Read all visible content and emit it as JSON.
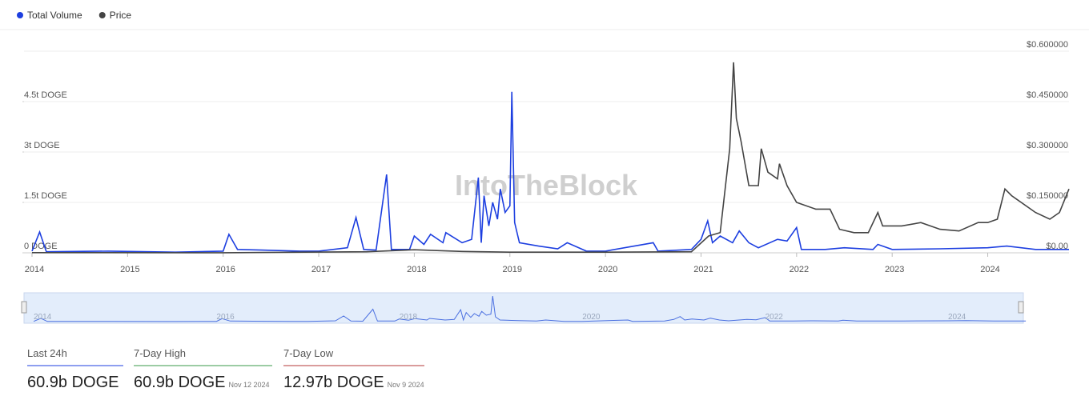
{
  "chart_data": {
    "type": "line",
    "watermark": "IntoTheBlock",
    "legend": "top-left",
    "grid": true,
    "xlim": [
      2014,
      2024.85
    ],
    "xticks": [
      2014,
      2015,
      2016,
      2017,
      2018,
      2019,
      2020,
      2021,
      2022,
      2023,
      2024
    ],
    "ylim": [
      0,
      6000000000000.0
    ],
    "yticks": [
      {
        "value": 0,
        "label": "0 DOGE"
      },
      {
        "value": 1500000000000.0,
        "label": "1.5t DOGE"
      },
      {
        "value": 3000000000000.0,
        "label": "3t DOGE"
      },
      {
        "value": 4500000000000.0,
        "label": "4.5t DOGE"
      }
    ],
    "y2lim": [
      0,
      0.6
    ],
    "y2ticks": [
      {
        "value": 0,
        "label": "$0.00"
      },
      {
        "value": 0.15,
        "label": "$0.150000"
      },
      {
        "value": 0.3,
        "label": "$0.300000"
      },
      {
        "value": 0.45,
        "label": "$0.450000"
      },
      {
        "value": 0.6,
        "label": "$0.600000"
      }
    ],
    "series": [
      {
        "name": "Total Volume",
        "color": "#1d3fe0",
        "x": [
          2014.0,
          2014.08,
          2014.15,
          2014.8,
          2015.5,
          2016.0,
          2016.06,
          2016.15,
          2016.4,
          2016.8,
          2017.0,
          2017.3,
          2017.39,
          2017.47,
          2017.6,
          2017.71,
          2017.76,
          2017.95,
          2018.0,
          2018.1,
          2018.17,
          2018.3,
          2018.33,
          2018.5,
          2018.6,
          2018.67,
          2018.7,
          2018.73,
          2018.78,
          2018.82,
          2018.87,
          2018.9,
          2018.95,
          2019.0,
          2019.02,
          2019.05,
          2019.1,
          2019.3,
          2019.5,
          2019.6,
          2019.8,
          2020.0,
          2020.5,
          2020.55,
          2020.9,
          2021.0,
          2021.07,
          2021.12,
          2021.2,
          2021.33,
          2021.4,
          2021.5,
          2021.6,
          2021.8,
          2021.9,
          2022.0,
          2022.05,
          2022.3,
          2022.5,
          2022.8,
          2022.85,
          2023.0,
          2023.5,
          2024.0,
          2024.2,
          2024.5,
          2024.85
        ],
        "values": [
          50000000000.0,
          620000000000.0,
          30000000000.0,
          50000000000.0,
          20000000000.0,
          50000000000.0,
          550000000000.0,
          100000000000.0,
          80000000000.0,
          50000000000.0,
          50000000000.0,
          150000000000.0,
          1050000000000.0,
          100000000000.0,
          80000000000.0,
          2330000000000.0,
          100000000000.0,
          100000000000.0,
          500000000000.0,
          250000000000.0,
          550000000000.0,
          300000000000.0,
          600000000000.0,
          300000000000.0,
          400000000000.0,
          2240000000000.0,
          300000000000.0,
          1700000000000.0,
          800000000000.0,
          1500000000000.0,
          1000000000000.0,
          1900000000000.0,
          1200000000000.0,
          1400000000000.0,
          4790000000000.0,
          900000000000.0,
          300000000000.0,
          200000000000.0,
          120000000000.0,
          300000000000.0,
          50000000000.0,
          50000000000.0,
          300000000000.0,
          50000000000.0,
          100000000000.0,
          400000000000.0,
          950000000000.0,
          300000000000.0,
          500000000000.0,
          300000000000.0,
          650000000000.0,
          300000000000.0,
          150000000000.0,
          400000000000.0,
          350000000000.0,
          750000000000.0,
          100000000000.0,
          100000000000.0,
          150000000000.0,
          100000000000.0,
          250000000000.0,
          100000000000.0,
          120000000000.0,
          150000000000.0,
          200000000000.0,
          100000000000.0,
          100000000000.0
        ]
      },
      {
        "name": "Price",
        "color": "#444444",
        "axis": "y2",
        "x": [
          2014.0,
          2016.0,
          2017.5,
          2018.0,
          2018.5,
          2019.0,
          2020.0,
          2020.9,
          2021.08,
          2021.2,
          2021.3,
          2021.34,
          2021.37,
          2021.42,
          2021.5,
          2021.6,
          2021.63,
          2021.7,
          2021.8,
          2021.82,
          2021.9,
          2022.0,
          2022.2,
          2022.35,
          2022.45,
          2022.6,
          2022.75,
          2022.85,
          2022.9,
          2023.1,
          2023.3,
          2023.5,
          2023.7,
          2023.9,
          2024.0,
          2024.1,
          2024.18,
          2024.25,
          2024.35,
          2024.5,
          2024.65,
          2024.75,
          2024.85
        ],
        "values": [
          0.0005,
          0.0002,
          0.003,
          0.009,
          0.004,
          0.002,
          0.002,
          0.003,
          0.05,
          0.06,
          0.31,
          0.567,
          0.4,
          0.33,
          0.2,
          0.2,
          0.31,
          0.24,
          0.22,
          0.265,
          0.2,
          0.15,
          0.13,
          0.13,
          0.07,
          0.06,
          0.06,
          0.12,
          0.08,
          0.08,
          0.09,
          0.07,
          0.065,
          0.09,
          0.09,
          0.1,
          0.19,
          0.17,
          0.15,
          0.12,
          0.1,
          0.12,
          0.19
        ]
      }
    ]
  },
  "stats": [
    {
      "label": "Last 24h",
      "value": "60.9b DOGE",
      "color": "#1d3fe0"
    },
    {
      "label": "7-Day High",
      "value": "60.9b DOGE",
      "date": "Nov 12 2024",
      "color": "#3a9a4a"
    },
    {
      "label": "7-Day Low",
      "value": "12.97b DOGE",
      "date": "Nov 9 2024",
      "color": "#b53a3a"
    }
  ]
}
